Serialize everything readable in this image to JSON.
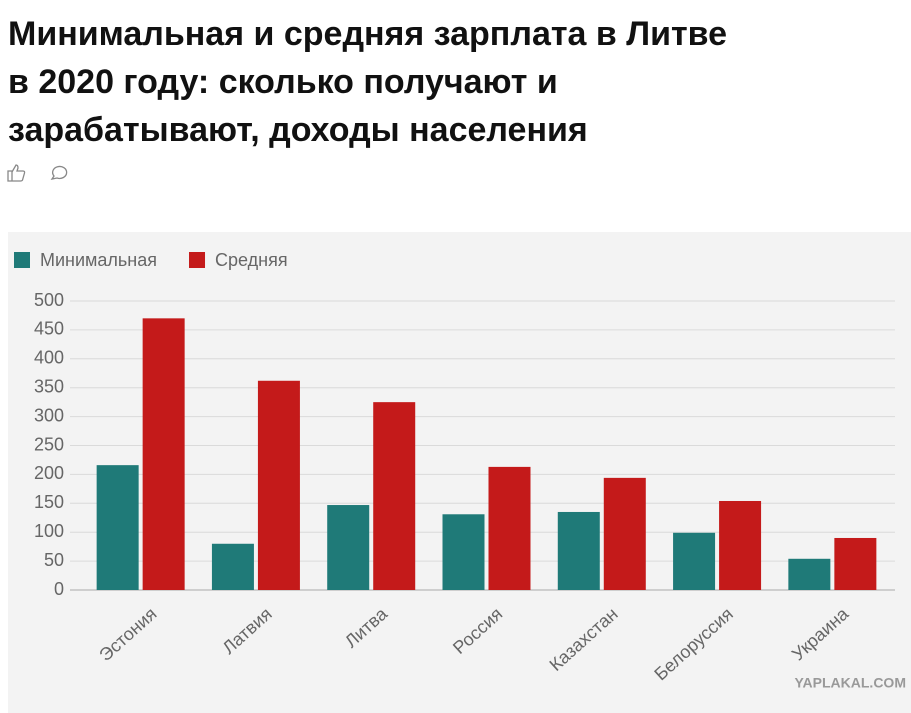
{
  "header": {
    "title_lines": [
      "Минимальная и средняя зарплата в Литве",
      "в 2020 году: сколько получают и",
      "зарабатывают, доходы населения"
    ]
  },
  "watermark": "YAPLAKAL.COM",
  "chart_data": {
    "type": "bar",
    "categories": [
      "Эстония",
      "Латвия",
      "Литва",
      "Россия",
      "Казахстан",
      "Белоруссия",
      "Украина"
    ],
    "series": [
      {
        "name": "Минимальная",
        "color": "#1f7a78",
        "values": [
          216,
          80,
          147,
          131,
          135,
          99,
          54
        ]
      },
      {
        "name": "Средняя",
        "color": "#c41a1a",
        "values": [
          470,
          362,
          325,
          213,
          194,
          154,
          90
        ]
      }
    ],
    "ylim": [
      0,
      500
    ],
    "yticks": [
      0,
      50,
      100,
      150,
      200,
      250,
      300,
      350,
      400,
      450,
      500
    ],
    "grid": true,
    "legend": "top-left"
  }
}
